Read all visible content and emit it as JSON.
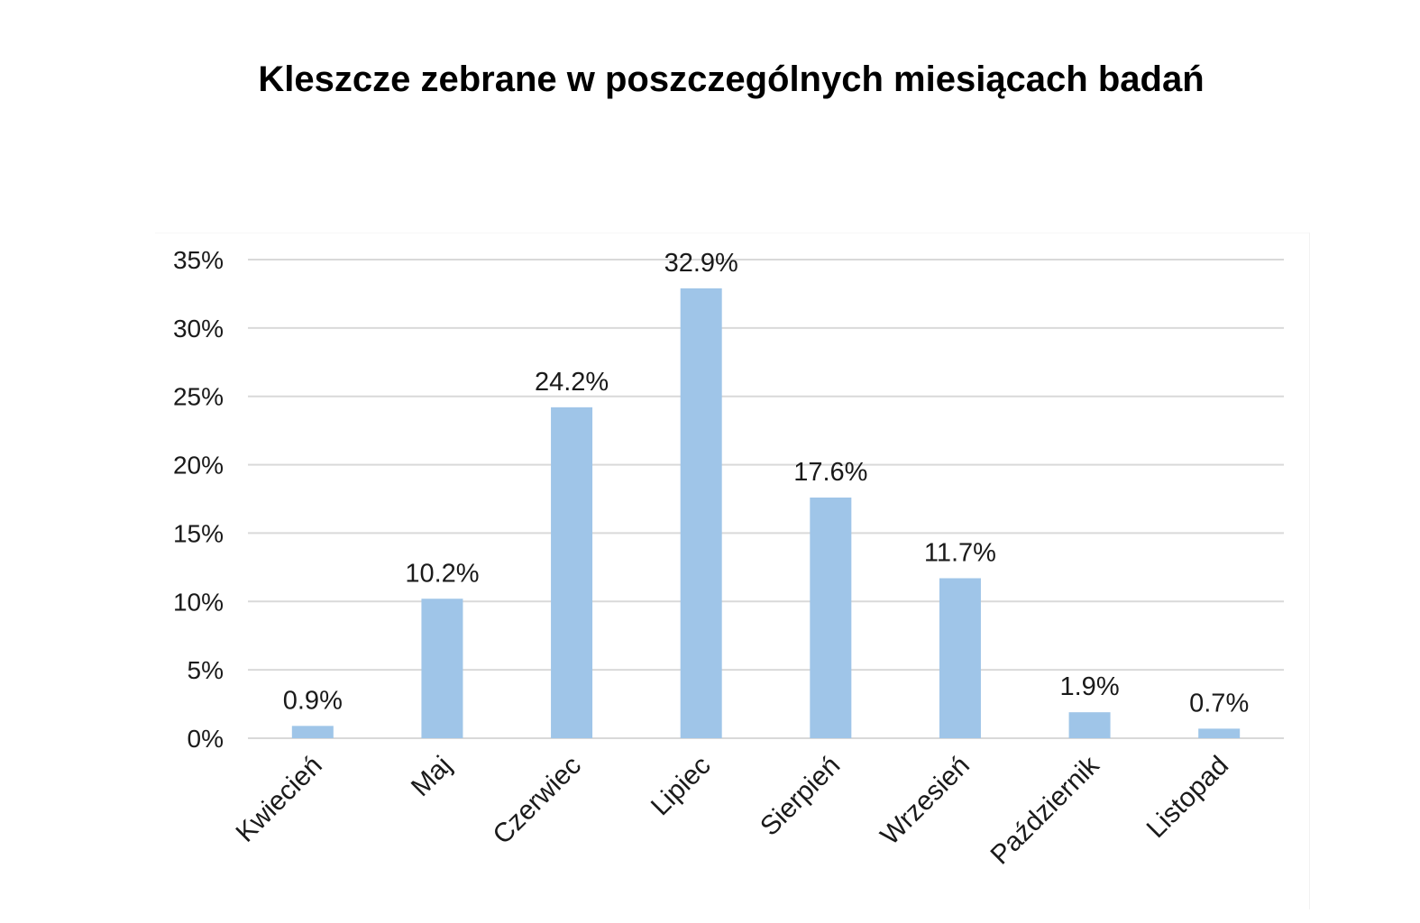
{
  "chart_data": {
    "type": "bar",
    "title": "Kleszcze zebrane w poszczególnych miesiącach badań",
    "categories": [
      "Kwiecień",
      "Maj",
      "Czerwiec",
      "Lipiec",
      "Sierpień",
      "Wrzesień",
      "Październik",
      "Listopad"
    ],
    "values": [
      0.9,
      10.2,
      24.2,
      32.9,
      17.6,
      11.7,
      1.9,
      0.7
    ],
    "data_labels": [
      "0.9%",
      "10.2%",
      "24.2%",
      "32.9%",
      "17.6%",
      "11.7%",
      "1.9%",
      "0.7%"
    ],
    "y_ticks": [
      0,
      5,
      10,
      15,
      20,
      25,
      30,
      35
    ],
    "y_tick_labels": [
      "0%",
      "5%",
      "10%",
      "15%",
      "20%",
      "25%",
      "30%",
      "35%"
    ],
    "ylim": [
      0,
      35
    ],
    "xlabel": "",
    "ylabel": "",
    "grid": true,
    "legend": "none",
    "bar_color": "#9fc5e8",
    "grid_color": "#d9d9d9"
  }
}
